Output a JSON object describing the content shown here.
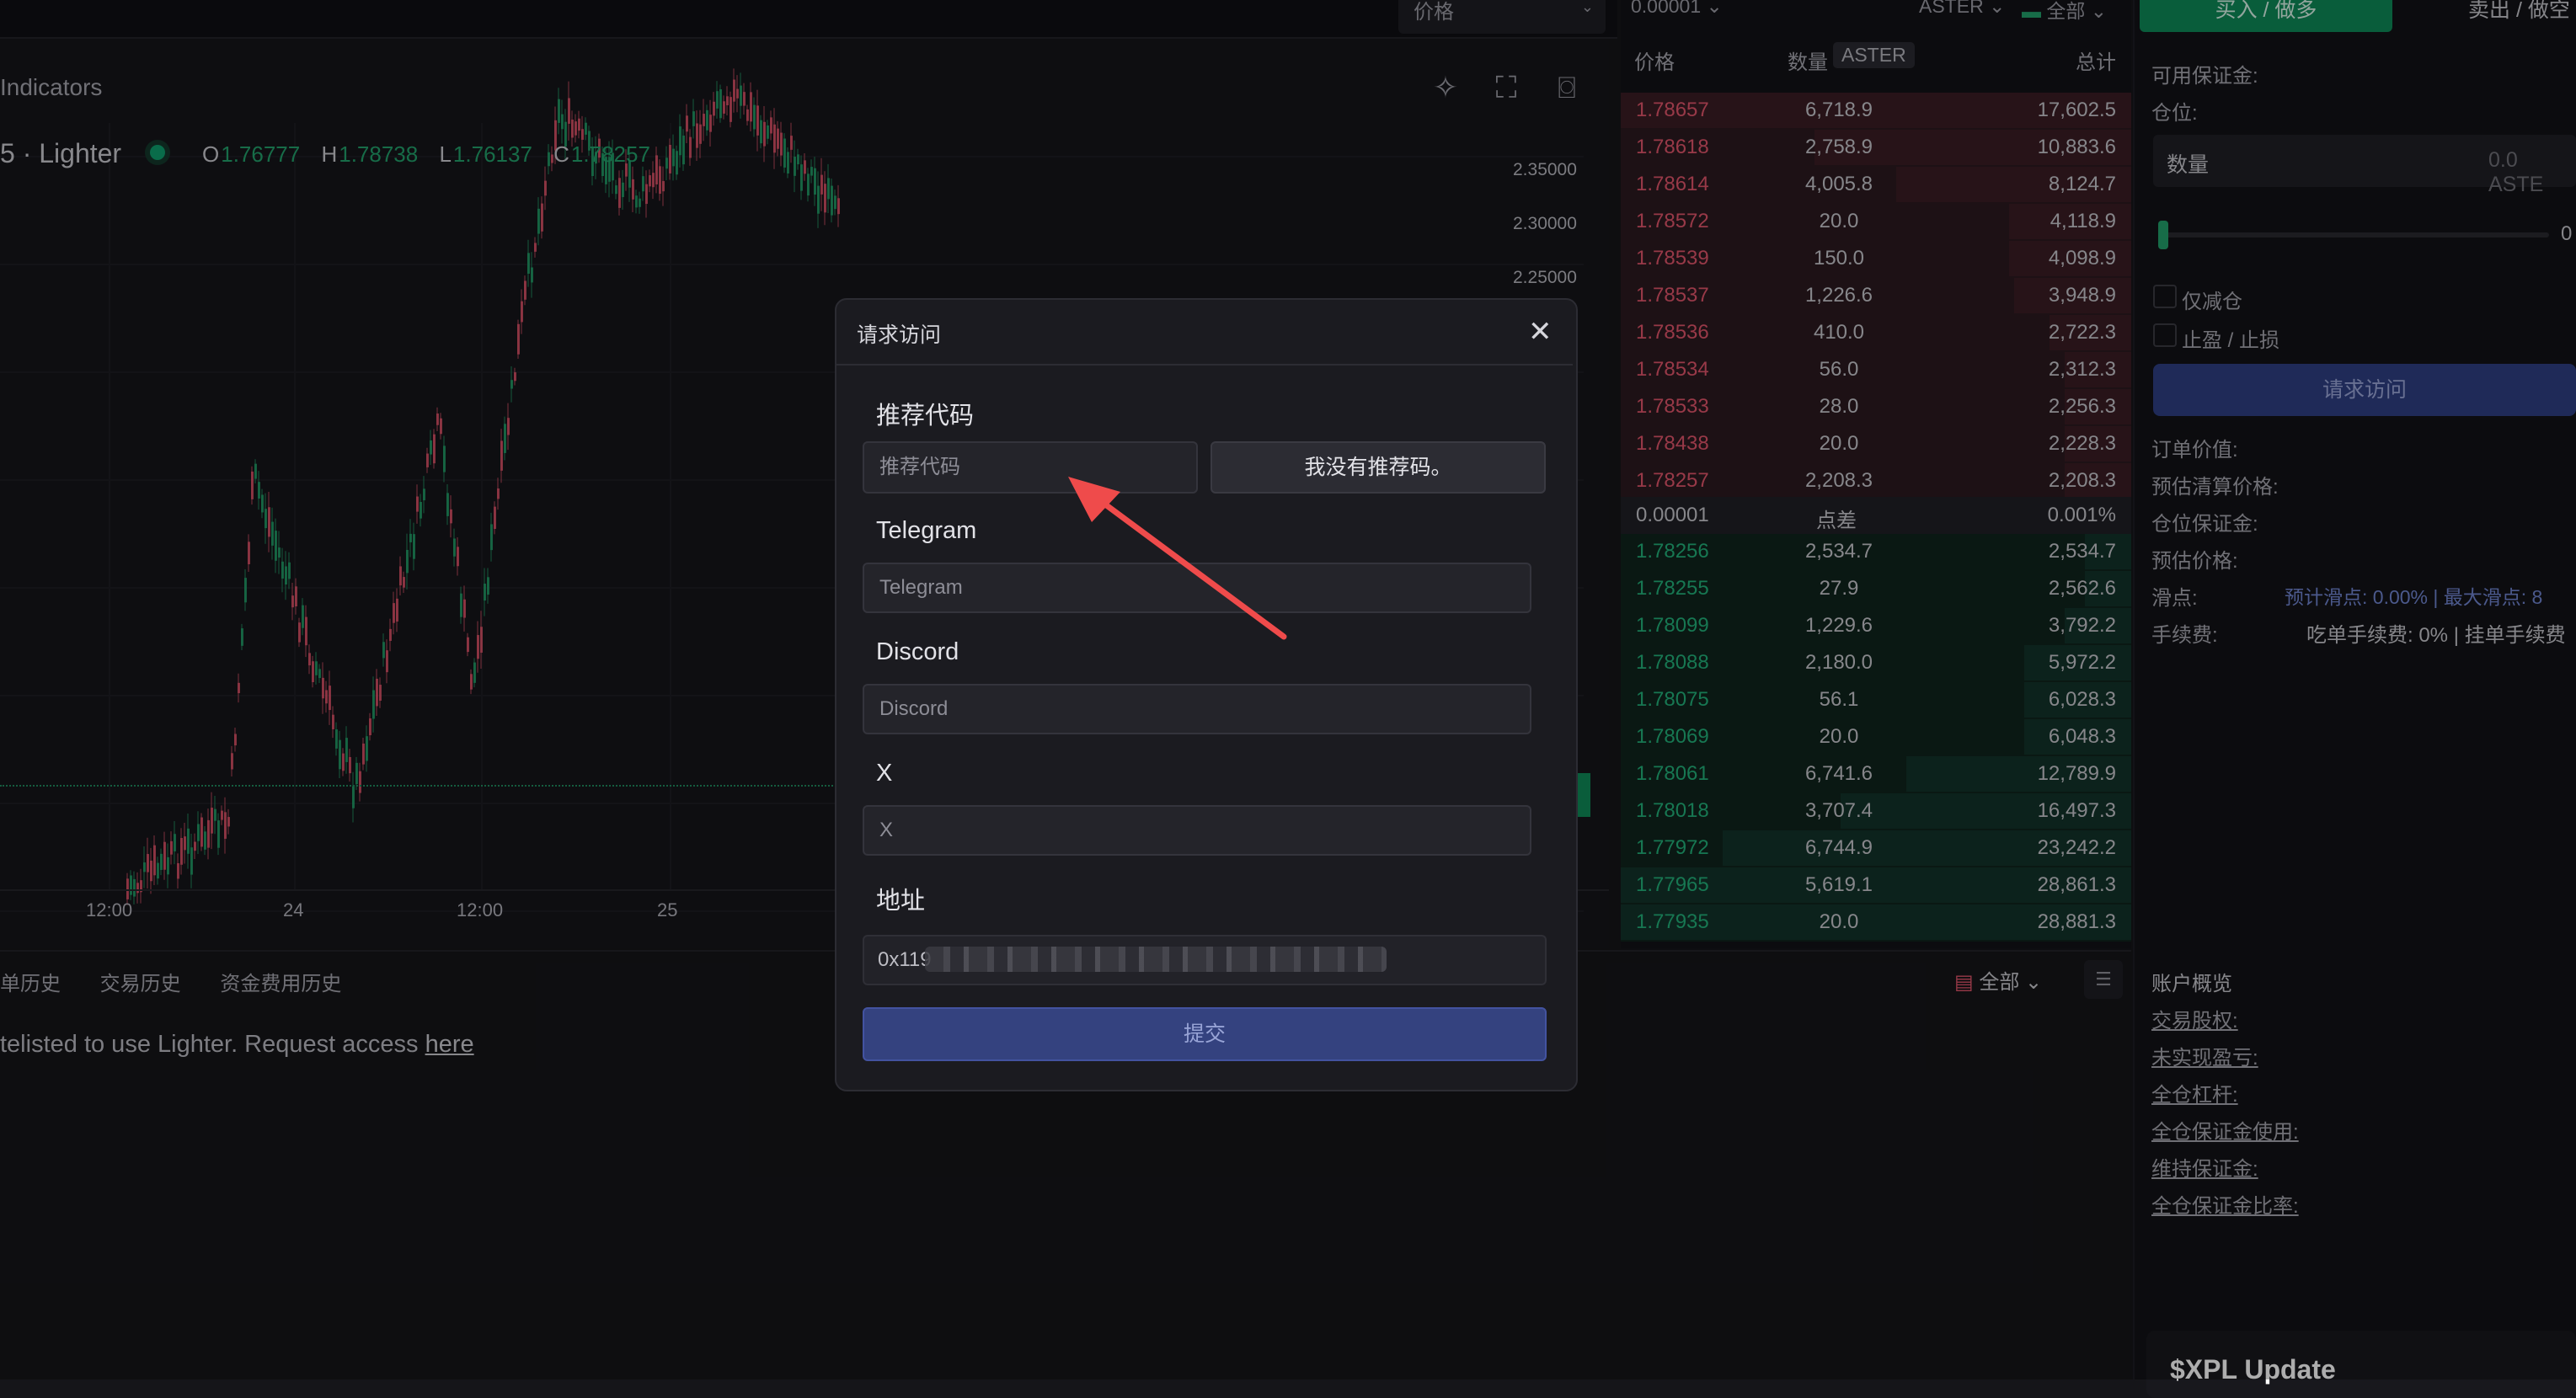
{
  "top": {
    "price_select": "价格",
    "tick_size": "0.00001",
    "symbol": "ASTER",
    "filter_all": "全部"
  },
  "chart": {
    "indicators": "Indicators",
    "symbol": "5 · Lighter",
    "ohlc": {
      "o_label": "O",
      "o": "1.76777",
      "h_label": "H",
      "h": "1.78738",
      "l_label": "L",
      "l": "1.76137",
      "c_label": "C",
      "c": "1.78257"
    },
    "y_ticks": [
      "2.35000",
      "2.30000",
      "2.25000"
    ],
    "x_ticks": [
      "12:00",
      "24",
      "12:00",
      "25"
    ],
    "icons": [
      "magic-icon",
      "fullscreen-icon",
      "camera-icon"
    ],
    "colors": {
      "up": "#22a06b",
      "down": "#e0556b"
    }
  },
  "orderbook": {
    "col_price": "价格",
    "col_qty": "数量",
    "col_unit": "ASTER",
    "col_total": "总计",
    "asks": [
      {
        "price": "1.78657",
        "qty": "6,718.9",
        "total": "17,602.5",
        "depth": 1.0
      },
      {
        "price": "1.78618",
        "qty": "2,758.9",
        "total": "10,883.6",
        "depth": 0.62
      },
      {
        "price": "1.78614",
        "qty": "4,005.8",
        "total": "8,124.7",
        "depth": 0.46
      },
      {
        "price": "1.78572",
        "qty": "20.0",
        "total": "4,118.9",
        "depth": 0.24
      },
      {
        "price": "1.78539",
        "qty": "150.0",
        "total": "4,098.9",
        "depth": 0.24
      },
      {
        "price": "1.78537",
        "qty": "1,226.6",
        "total": "3,948.9",
        "depth": 0.23
      },
      {
        "price": "1.78536",
        "qty": "410.0",
        "total": "2,722.3",
        "depth": 0.16
      },
      {
        "price": "1.78534",
        "qty": "56.0",
        "total": "2,312.3",
        "depth": 0.13
      },
      {
        "price": "1.78533",
        "qty": "28.0",
        "total": "2,256.3",
        "depth": 0.13
      },
      {
        "price": "1.78438",
        "qty": "20.0",
        "total": "2,228.3",
        "depth": 0.13
      },
      {
        "price": "1.78257",
        "qty": "2,208.3",
        "total": "2,208.3",
        "depth": 0.13
      }
    ],
    "spread": {
      "tick": "0.00001",
      "label": "点差",
      "pct": "0.001%"
    },
    "bids": [
      {
        "price": "1.78256",
        "qty": "2,534.7",
        "total": "2,534.7",
        "depth": 0.09
      },
      {
        "price": "1.78255",
        "qty": "27.9",
        "total": "2,562.6",
        "depth": 0.09
      },
      {
        "price": "1.78099",
        "qty": "1,229.6",
        "total": "3,792.2",
        "depth": 0.13
      },
      {
        "price": "1.78088",
        "qty": "2,180.0",
        "total": "5,972.2",
        "depth": 0.21
      },
      {
        "price": "1.78075",
        "qty": "56.1",
        "total": "6,028.3",
        "depth": 0.21
      },
      {
        "price": "1.78069",
        "qty": "20.0",
        "total": "6,048.3",
        "depth": 0.21
      },
      {
        "price": "1.78061",
        "qty": "6,741.6",
        "total": "12,789.9",
        "depth": 0.44
      },
      {
        "price": "1.78018",
        "qty": "3,707.4",
        "total": "16,497.3",
        "depth": 0.57
      },
      {
        "price": "1.77972",
        "qty": "6,744.9",
        "total": "23,242.2",
        "depth": 0.8
      },
      {
        "price": "1.77965",
        "qty": "5,619.1",
        "total": "28,861.3",
        "depth": 1.0
      },
      {
        "price": "1.77935",
        "qty": "20.0",
        "total": "28,881.3",
        "depth": 1.0
      }
    ]
  },
  "trade": {
    "buy_tab": "买入 / 做多",
    "sell_tab": "卖出 / 做空",
    "available_margin": "可用保证金:",
    "position": "仓位:",
    "qty_label": "数量",
    "qty_value": "0.0 ASTE",
    "slider_value": "0",
    "reduce_only": "仅减仓",
    "tp_sl": "止盈 / 止损",
    "access_button": "请求访问",
    "order_value": "订单价值:",
    "est_liq_price": "预估清算价格:",
    "position_margin": "仓位保证金:",
    "est_price": "预估价格:",
    "slippage": "滑点:",
    "slippage_values": "预计滑点: 0.00% | 最大滑点: 8",
    "fees": "手续费:",
    "fees_values": "吃单手续费: 0% | 挂单手续费"
  },
  "bottom": {
    "tabs": [
      "订单历史",
      "交易历史",
      "资金费用历史"
    ],
    "tabs_display": [
      "丁单历史",
      "交易历史",
      "资金费用历史"
    ],
    "notice": "telisted to use Lighter. Request access ",
    "notice_link": "here",
    "filter_all": "全部",
    "account_overview": "账户概览",
    "account_links": [
      "交易股权:",
      "未实现盈亏:",
      "全仓杠杆:",
      "全仓保证金使用:",
      "维持保证金:",
      "全仓保证金比率:"
    ],
    "news_title": "$XPL Update"
  },
  "modal": {
    "title": "请求访问",
    "referral_label": "推荐代码",
    "referral_placeholder": "推荐代码",
    "no_referral_button": "我没有推荐码。",
    "telegram_label": "Telegram",
    "telegram_placeholder": "Telegram",
    "discord_label": "Discord",
    "discord_placeholder": "Discord",
    "x_label": "X",
    "x_placeholder": "X",
    "address_label": "地址",
    "address_prefix": "0x119",
    "submit_button": "提交",
    "arrow_color": "#ef4b4b"
  }
}
